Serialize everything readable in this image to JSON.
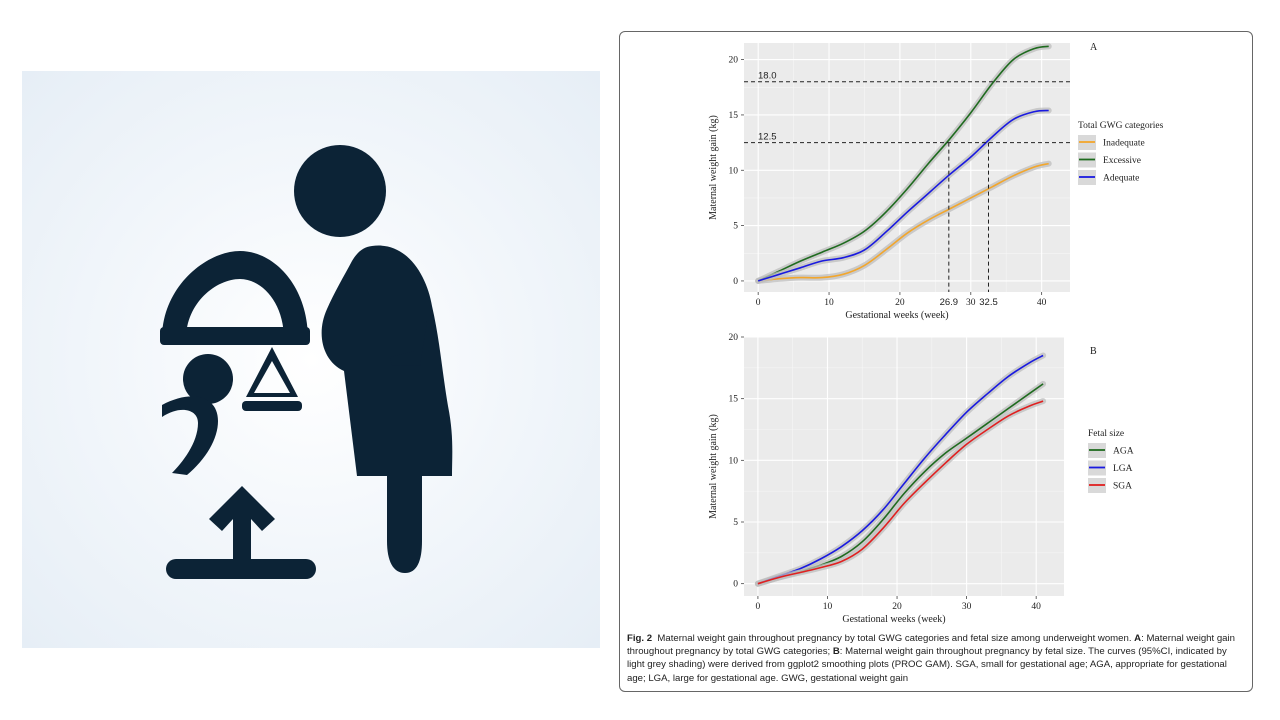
{
  "icon_panel": {
    "icon": "pregnant-woman-with-baby-scale-and-up-arrow-icon",
    "color": "#0c2336"
  },
  "chart_data": [
    {
      "type": "line",
      "panel_label": "A",
      "xlabel": "Gestational weeks (week)",
      "ylabel": "Maternal weight gain (kg)",
      "xlim": [
        -2,
        44
      ],
      "ylim": [
        -1,
        21.5
      ],
      "x_ticks": [
        0,
        10,
        20,
        30,
        40
      ],
      "y_ticks": [
        0,
        5,
        10,
        15,
        20
      ],
      "grid": true,
      "legend_title": "Total GWG categories",
      "legend_position": "right",
      "series": [
        {
          "name": "Inadequate",
          "color": "#f2a62c",
          "x": [
            0,
            3,
            6,
            9,
            12,
            15,
            18,
            21,
            24,
            27,
            30,
            33,
            36,
            39,
            41
          ],
          "y": [
            0,
            0.2,
            0.3,
            0.3,
            0.6,
            1.4,
            2.8,
            4.3,
            5.5,
            6.5,
            7.5,
            8.5,
            9.5,
            10.3,
            10.6
          ]
        },
        {
          "name": "Excessive",
          "color": "#1f6b1f",
          "x": [
            0,
            3,
            6,
            9,
            12,
            15,
            18,
            21,
            24,
            27,
            30,
            33,
            36,
            39,
            41
          ],
          "y": [
            0,
            0.9,
            1.8,
            2.6,
            3.4,
            4.5,
            6.2,
            8.3,
            10.6,
            12.8,
            15.2,
            17.8,
            20.0,
            21.0,
            21.2
          ]
        },
        {
          "name": "Adequate",
          "color": "#1a1ae0",
          "x": [
            0,
            3,
            6,
            9,
            12,
            15,
            18,
            21,
            24,
            27,
            30,
            33,
            36,
            39,
            41
          ],
          "y": [
            0,
            0.6,
            1.2,
            1.8,
            2.1,
            2.8,
            4.4,
            6.2,
            7.9,
            9.6,
            11.2,
            13.0,
            14.6,
            15.3,
            15.4
          ]
        }
      ],
      "reference_lines": [
        {
          "axis": "y",
          "value": 18.0,
          "label": "18.0"
        },
        {
          "axis": "y",
          "value": 12.5,
          "label": "12.5"
        },
        {
          "axis": "x",
          "value": 26.9,
          "label": "26.9"
        },
        {
          "axis": "x",
          "value": 32.5,
          "label": "32.5"
        }
      ]
    },
    {
      "type": "line",
      "panel_label": "B",
      "xlabel": "Gestational weeks (week)",
      "ylabel": "Maternal weight gain (kg)",
      "xlim": [
        -2,
        44
      ],
      "ylim": [
        -1,
        20
      ],
      "x_ticks": [
        0,
        10,
        20,
        30,
        40
      ],
      "y_ticks": [
        0,
        5,
        10,
        15,
        20
      ],
      "grid": true,
      "legend_title": "Fetal size",
      "legend_position": "right",
      "series": [
        {
          "name": "AGA",
          "color": "#1f6b1f",
          "x": [
            0,
            3,
            6,
            9,
            12,
            15,
            18,
            21,
            24,
            27,
            30,
            33,
            36,
            39,
            41
          ],
          "y": [
            0,
            0.5,
            1.0,
            1.5,
            2.2,
            3.4,
            5.2,
            7.3,
            9.1,
            10.6,
            11.8,
            13.0,
            14.2,
            15.4,
            16.2
          ]
        },
        {
          "name": "LGA",
          "color": "#1a1ae0",
          "x": [
            0,
            3,
            6,
            9,
            12,
            15,
            18,
            21,
            24,
            27,
            30,
            33,
            36,
            39,
            41
          ],
          "y": [
            0,
            0.6,
            1.2,
            2.0,
            3.0,
            4.3,
            6.0,
            8.1,
            10.2,
            12.1,
            13.9,
            15.4,
            16.8,
            17.9,
            18.5
          ]
        },
        {
          "name": "SGA",
          "color": "#e02020",
          "x": [
            0,
            3,
            6,
            9,
            12,
            15,
            18,
            21,
            24,
            27,
            30,
            33,
            36,
            39,
            41
          ],
          "y": [
            0,
            0.5,
            0.9,
            1.3,
            1.8,
            2.8,
            4.5,
            6.5,
            8.2,
            9.8,
            11.3,
            12.5,
            13.6,
            14.4,
            14.8
          ]
        }
      ]
    }
  ],
  "caption": {
    "fig_label": "Fig. 2",
    "text_1": "Maternal weight gain throughout pregnancy by total GWG categories and fetal size among underweight women. ",
    "label_a": "A",
    "text_2": ": Maternal weight gain throughout pregnancy by total GWG categories; ",
    "label_b": "B",
    "text_3": ": Maternal weight gain throughout pregnancy by fetal size. The curves (95%CI, indicated by light grey shading) were derived from ggplot2 smoothing plots (PROC GAM). SGA, small for gestational age; AGA, appropriate for gestational age; LGA, large for gestational age. GWG, gestational weight gain"
  }
}
